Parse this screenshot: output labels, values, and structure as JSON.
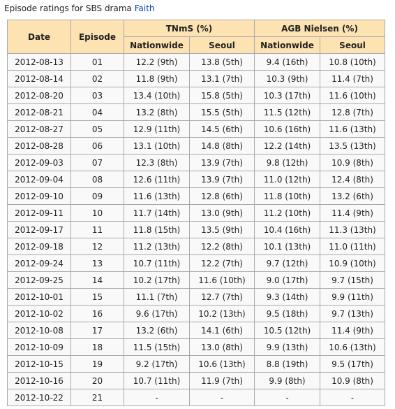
{
  "caption": {
    "text": "Episode ratings for SBS drama ",
    "link": "Faith"
  },
  "table": {
    "headers": {
      "date": "Date",
      "episode": "Episode",
      "tnms": "TNmS (%)",
      "agb": "AGB Nielsen (%)",
      "sub": [
        "Nationwide",
        "Seoul",
        "Nationwide",
        "Seoul"
      ]
    },
    "rows": [
      [
        "2012-08-13",
        "01",
        "12.2 (9th)",
        "13.8 (5th)",
        "9.4 (16th)",
        "10.8 (10th)"
      ],
      [
        "2012-08-14",
        "02",
        "11.8 (9th)",
        "13.1 (7th)",
        "10.3 (9th)",
        "11.4 (7th)"
      ],
      [
        "2012-08-20",
        "03",
        "13.4 (10th)",
        "15.8 (5th)",
        "10.3 (17th)",
        "11.6 (10th)"
      ],
      [
        "2012-08-21",
        "04",
        "13.2 (8th)",
        "15.5 (5th)",
        "11.5 (12th)",
        "12.8 (7th)"
      ],
      [
        "2012-08-27",
        "05",
        "12.9 (11th)",
        "14.5 (6th)",
        "10.6 (16th)",
        "11.6 (13th)"
      ],
      [
        "2012-08-28",
        "06",
        "13.1 (10th)",
        "14.8 (8th)",
        "12.2 (14th)",
        "13.5 (13th)"
      ],
      [
        "2012-09-03",
        "07",
        "12.3 (8th)",
        "13.9 (7th)",
        "9.8 (12th)",
        "10.9 (8th)"
      ],
      [
        "2012-09-04",
        "08",
        "12.6 (11th)",
        "13.9 (7th)",
        "11.0 (12th)",
        "12.4 (8th)"
      ],
      [
        "2012-09-10",
        "09",
        "11.6 (13th)",
        "12.8 (6th)",
        "11.8 (10th)",
        "13.2 (6th)"
      ],
      [
        "2012-09-11",
        "10",
        "11.7 (14th)",
        "13.0 (9th)",
        "11.2 (10th)",
        "11.4 (9th)"
      ],
      [
        "2012-09-17",
        "11",
        "11.8 (15th)",
        "13.5 (9th)",
        "10.4 (16th)",
        "11.3 (13th)"
      ],
      [
        "2012-09-18",
        "12",
        "11.2 (13th)",
        "12.2 (8th)",
        "10.1 (13th)",
        "11.0 (11th)"
      ],
      [
        "2012-09-24",
        "13",
        "10.7 (11th)",
        "12.2 (7th)",
        "9.7 (12th)",
        "10.9 (10th)"
      ],
      [
        "2012-09-25",
        "14",
        "10.2 (17th)",
        "11.6 (10th)",
        "9.0 (17th)",
        "9.7 (15th)"
      ],
      [
        "2012-10-01",
        "15",
        "11.1 (7th)",
        "12.7 (7th)",
        "9.3 (14th)",
        "9.9 (11th)"
      ],
      [
        "2012-10-02",
        "16",
        "9.6 (17th)",
        "10.2 (13th)",
        "9.5 (18th)",
        "9.7 (13th)"
      ],
      [
        "2012-10-08",
        "17",
        "13.2 (6th)",
        "14.1 (6th)",
        "10.5 (12th)",
        "11.4 (9th)"
      ],
      [
        "2012-10-09",
        "18",
        "11.5 (15th)",
        "13.0 (8th)",
        "9.9 (13th)",
        "10.6 (13th)"
      ],
      [
        "2012-10-15",
        "19",
        "9.2 (17th)",
        "10.6 (13th)",
        "8.8 (19th)",
        "9.5 (17th)"
      ],
      [
        "2012-10-16",
        "20",
        "10.7 (11th)",
        "11.9 (7th)",
        "9.9 (8th)",
        "10.9 (8th)"
      ],
      [
        "2012-10-22",
        "21",
        "-",
        "-",
        "-",
        "-"
      ]
    ]
  }
}
